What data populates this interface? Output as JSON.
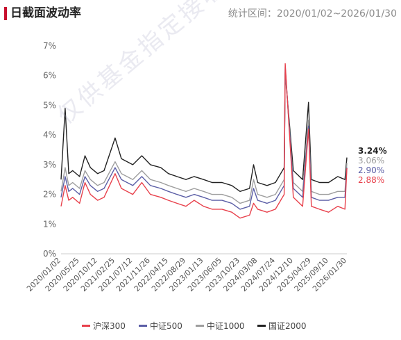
{
  "header": {
    "title": "日截面波动率",
    "range_prefix": "统计区间：",
    "range": "2020/01/02~2026/01/30"
  },
  "watermark": "仅供基金指定接收人使用",
  "chart_data": {
    "type": "line",
    "title": "日截面波动率",
    "x_tick_labels": [
      "2020/01/02",
      "2020/05/25",
      "2020/10/12",
      "2021/02/25",
      "2021/07/12",
      "2021/11/26",
      "2022/04/15",
      "2022/08/29",
      "2023/01/13",
      "2023/06/05",
      "2023/10/23",
      "2024/03/08",
      "2024/07/24",
      "2024/12/10",
      "2025/04/29",
      "2025/09/10",
      "2026/01/30"
    ],
    "y_tick_labels": [
      "0%",
      "1%",
      "2%",
      "3%",
      "4%",
      "5%",
      "6%",
      "7%"
    ],
    "ylim": [
      0,
      7
    ],
    "grid": false,
    "legend_position": "bottom",
    "series": [
      {
        "name": "沪深300",
        "color": "#e8414c",
        "last_value": 2.88,
        "last_label": "2.88%",
        "x": [
          "2020/01/02",
          "2020/02/03",
          "2020/03/02",
          "2020/04/01",
          "2020/05/25",
          "2020/07/06",
          "2020/08/17",
          "2020/10/12",
          "2020/12/01",
          "2021/02/25",
          "2021/04/15",
          "2021/07/12",
          "2021/09/20",
          "2021/11/26",
          "2022/02/15",
          "2022/04/15",
          "2022/06/20",
          "2022/08/29",
          "2022/11/01",
          "2023/01/13",
          "2023/03/20",
          "2023/06/05",
          "2023/08/20",
          "2023/10/23",
          "2024/01/05",
          "2024/02/05",
          "2024/03/08",
          "2024/05/20",
          "2024/07/24",
          "2024/09/30",
          "2024/10/08",
          "2024/12/10",
          "2025/02/20",
          "2025/04/07",
          "2025/04/29",
          "2025/07/01",
          "2025/09/10",
          "2025/11/20",
          "2026/01/15",
          "2026/01/30"
        ],
        "values": [
          1.6,
          2.3,
          1.8,
          1.9,
          1.7,
          2.4,
          2.0,
          1.8,
          1.9,
          2.7,
          2.2,
          2.0,
          2.4,
          2.0,
          1.9,
          1.8,
          1.7,
          1.6,
          1.8,
          1.6,
          1.5,
          1.5,
          1.4,
          1.2,
          1.3,
          1.7,
          1.5,
          1.4,
          1.5,
          2.0,
          6.4,
          1.9,
          1.6,
          4.2,
          1.6,
          1.5,
          1.4,
          1.6,
          1.5,
          2.88
        ]
      },
      {
        "name": "中证500",
        "color": "#5b5ea6",
        "last_value": 2.9,
        "last_label": "2.90%",
        "x": [
          "2020/01/02",
          "2020/02/03",
          "2020/03/02",
          "2020/04/01",
          "2020/05/25",
          "2020/07/06",
          "2020/08/17",
          "2020/10/12",
          "2020/12/01",
          "2021/02/25",
          "2021/04/15",
          "2021/07/12",
          "2021/09/20",
          "2021/11/26",
          "2022/02/15",
          "2022/04/15",
          "2022/06/20",
          "2022/08/29",
          "2022/11/01",
          "2023/01/13",
          "2023/03/20",
          "2023/06/05",
          "2023/08/20",
          "2023/10/23",
          "2024/01/05",
          "2024/02/05",
          "2024/03/08",
          "2024/05/20",
          "2024/07/24",
          "2024/09/30",
          "2024/10/08",
          "2024/12/10",
          "2025/02/20",
          "2025/04/07",
          "2025/04/29",
          "2025/07/01",
          "2025/09/10",
          "2025/11/20",
          "2026/01/15",
          "2026/01/30"
        ],
        "values": [
          1.9,
          2.6,
          2.1,
          2.2,
          2.0,
          2.6,
          2.3,
          2.1,
          2.2,
          2.9,
          2.5,
          2.3,
          2.6,
          2.3,
          2.2,
          2.1,
          2.0,
          1.9,
          2.0,
          1.9,
          1.8,
          1.8,
          1.7,
          1.5,
          1.6,
          2.2,
          1.8,
          1.7,
          1.8,
          2.3,
          6.3,
          2.2,
          1.9,
          4.3,
          1.9,
          1.8,
          1.8,
          1.9,
          1.9,
          2.9
        ]
      },
      {
        "name": "中证1000",
        "color": "#9e9e9e",
        "last_value": 3.06,
        "last_label": "3.06%",
        "x": [
          "2020/01/02",
          "2020/02/03",
          "2020/03/02",
          "2020/04/01",
          "2020/05/25",
          "2020/07/06",
          "2020/08/17",
          "2020/10/12",
          "2020/12/01",
          "2021/02/25",
          "2021/04/15",
          "2021/07/12",
          "2021/09/20",
          "2021/11/26",
          "2022/02/15",
          "2022/04/15",
          "2022/06/20",
          "2022/08/29",
          "2022/11/01",
          "2023/01/13",
          "2023/03/20",
          "2023/06/05",
          "2023/08/20",
          "2023/10/23",
          "2024/01/05",
          "2024/02/05",
          "2024/03/08",
          "2024/05/20",
          "2024/07/24",
          "2024/09/30",
          "2024/10/08",
          "2024/12/10",
          "2025/02/20",
          "2025/04/07",
          "2025/04/29",
          "2025/07/01",
          "2025/09/10",
          "2025/11/20",
          "2026/01/15",
          "2026/01/30"
        ],
        "values": [
          2.1,
          2.9,
          2.3,
          2.4,
          2.2,
          2.8,
          2.5,
          2.3,
          2.4,
          3.1,
          2.7,
          2.5,
          2.8,
          2.5,
          2.4,
          2.3,
          2.2,
          2.1,
          2.2,
          2.1,
          2.0,
          2.0,
          1.9,
          1.7,
          1.8,
          2.5,
          2.0,
          1.9,
          2.0,
          2.5,
          6.2,
          2.4,
          2.1,
          4.5,
          2.1,
          2.0,
          2.0,
          2.1,
          2.1,
          3.06
        ]
      },
      {
        "name": "国证2000",
        "color": "#222222",
        "last_value": 3.24,
        "last_label": "3.24%",
        "x": [
          "2020/01/02",
          "2020/02/03",
          "2020/03/02",
          "2020/04/01",
          "2020/05/25",
          "2020/07/06",
          "2020/08/17",
          "2020/10/12",
          "2020/12/01",
          "2021/02/25",
          "2021/04/15",
          "2021/07/12",
          "2021/09/20",
          "2021/11/26",
          "2022/02/15",
          "2022/04/15",
          "2022/06/20",
          "2022/08/29",
          "2022/11/01",
          "2023/01/13",
          "2023/03/20",
          "2023/06/05",
          "2023/08/20",
          "2023/10/23",
          "2024/01/05",
          "2024/02/05",
          "2024/03/08",
          "2024/05/20",
          "2024/07/24",
          "2024/09/30",
          "2024/10/08",
          "2024/12/10",
          "2025/02/20",
          "2025/04/07",
          "2025/04/29",
          "2025/07/01",
          "2025/09/10",
          "2025/11/20",
          "2026/01/15",
          "2026/01/30"
        ],
        "values": [
          2.5,
          4.9,
          2.7,
          2.8,
          2.6,
          3.3,
          2.9,
          2.7,
          2.8,
          3.9,
          3.2,
          3.0,
          3.3,
          3.0,
          2.9,
          2.7,
          2.6,
          2.5,
          2.6,
          2.5,
          2.4,
          2.4,
          2.3,
          2.1,
          2.2,
          3.0,
          2.4,
          2.3,
          2.4,
          2.9,
          6.1,
          2.8,
          2.5,
          5.1,
          2.5,
          2.4,
          2.4,
          2.6,
          2.5,
          3.24
        ]
      }
    ]
  }
}
